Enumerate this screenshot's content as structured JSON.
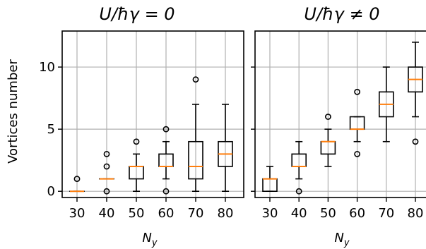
{
  "figure": {
    "ylabel": "Vortices number"
  },
  "chart_data": [
    {
      "type": "box",
      "title": "U/ħγ = 0",
      "title_parts": {
        "main": "U/ħγ = 0"
      },
      "xlabel": "N",
      "xlabel_sub": "y",
      "ylabel": "Vortices number",
      "categories": [
        "30",
        "40",
        "50",
        "60",
        "70",
        "80"
      ],
      "ylim": [
        -0.5,
        12.9
      ],
      "yticks": [
        0,
        5,
        10
      ],
      "grid": true,
      "boxes": [
        {
          "x": "30",
          "whislo": 0,
          "q1": 0,
          "med": 0,
          "q3": 0,
          "whishi": 0,
          "fliers": [
            1
          ]
        },
        {
          "x": "40",
          "whislo": 1,
          "q1": 1,
          "med": 1,
          "q3": 1,
          "whishi": 1,
          "fliers": [
            0,
            2,
            3
          ]
        },
        {
          "x": "50",
          "whislo": 0,
          "q1": 1,
          "med": 2,
          "q3": 2,
          "whishi": 3,
          "fliers": [
            4
          ]
        },
        {
          "x": "60",
          "whislo": 1,
          "q1": 2,
          "med": 2,
          "q3": 3,
          "whishi": 4,
          "fliers": [
            0,
            5
          ]
        },
        {
          "x": "70",
          "whislo": 0,
          "q1": 1,
          "med": 2,
          "q3": 4,
          "whishi": 7,
          "fliers": [
            9
          ]
        },
        {
          "x": "80",
          "whislo": 0,
          "q1": 2,
          "med": 3,
          "q3": 4,
          "whishi": 7,
          "fliers": []
        }
      ]
    },
    {
      "type": "box",
      "title": "U/ħγ ≠ 0",
      "xlabel": "N",
      "xlabel_sub": "y",
      "categories": [
        "30",
        "40",
        "50",
        "60",
        "70",
        "80"
      ],
      "ylim": [
        -0.5,
        12.9
      ],
      "yticks": [
        0,
        5,
        10
      ],
      "grid": true,
      "boxes": [
        {
          "x": "30",
          "whislo": 0,
          "q1": 0,
          "med": 1,
          "q3": 1,
          "whishi": 2,
          "fliers": []
        },
        {
          "x": "40",
          "whislo": 1,
          "q1": 2,
          "med": 2,
          "q3": 3,
          "whishi": 4,
          "fliers": [
            0
          ]
        },
        {
          "x": "50",
          "whislo": 2,
          "q1": 3,
          "med": 4,
          "q3": 4,
          "whishi": 5,
          "fliers": [
            6
          ]
        },
        {
          "x": "60",
          "whislo": 4,
          "q1": 5,
          "med": 5,
          "q3": 6,
          "whishi": 6,
          "fliers": [
            3,
            8
          ]
        },
        {
          "x": "70",
          "whislo": 4,
          "q1": 6,
          "med": 7,
          "q3": 8,
          "whishi": 10,
          "fliers": []
        },
        {
          "x": "80",
          "whislo": 6,
          "q1": 8,
          "med": 9,
          "q3": 10,
          "whishi": 12,
          "fliers": [
            4
          ]
        }
      ]
    }
  ],
  "style": {
    "median_color": "#ff7f0e",
    "box_color": "#000000",
    "grid_color": "#b0b0b0"
  }
}
